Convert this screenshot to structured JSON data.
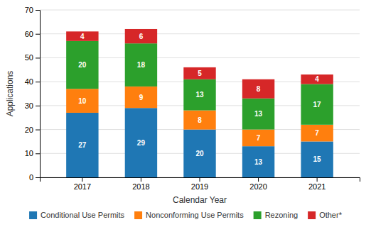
{
  "chart_data": {
    "type": "bar",
    "stacked": true,
    "categories": [
      "2017",
      "2018",
      "2019",
      "2020",
      "2021"
    ],
    "series": [
      {
        "name": "Conditional Use Permits",
        "values": [
          27,
          29,
          20,
          13,
          15
        ]
      },
      {
        "name": "Nonconforming Use Permits",
        "values": [
          10,
          9,
          8,
          7,
          7
        ]
      },
      {
        "name": "Rezoning",
        "values": [
          20,
          18,
          13,
          13,
          17
        ]
      },
      {
        "name": "Other*",
        "values": [
          4,
          6,
          5,
          8,
          4
        ]
      }
    ],
    "xlabel": "Calendar Year",
    "ylabel": "Applications",
    "ylim": [
      0,
      70
    ],
    "yticks": [
      0,
      10,
      20,
      30,
      40,
      50,
      60,
      70
    ],
    "grid": true,
    "data_labels": true,
    "legend": "bottom"
  }
}
